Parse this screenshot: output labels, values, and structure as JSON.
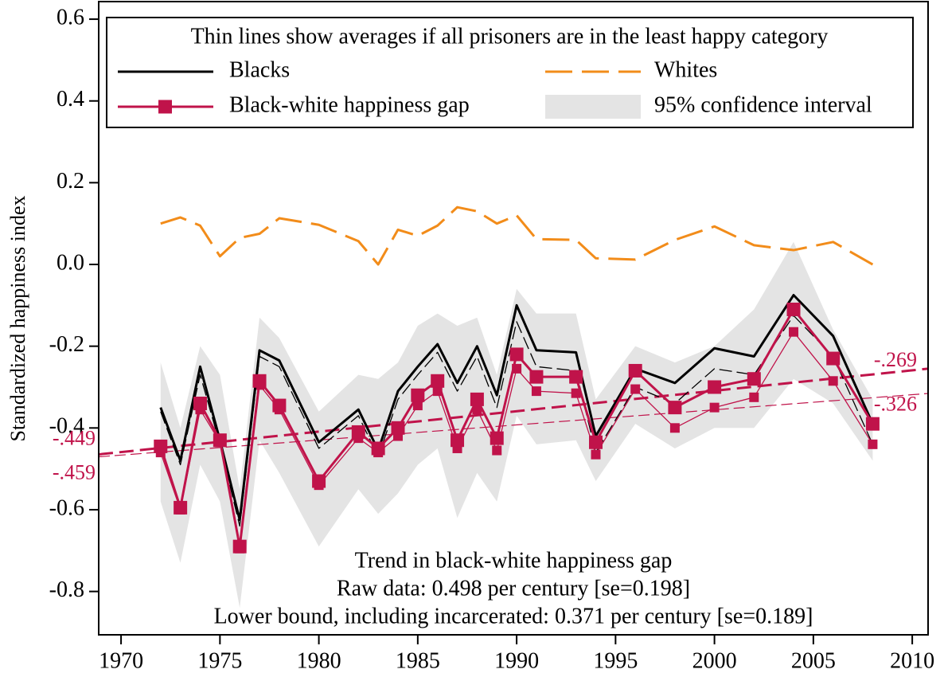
{
  "chart_data": {
    "type": "line",
    "y_label": "Standardized happiness index",
    "x": [
      1972,
      1973,
      1974,
      1975,
      1976,
      1977,
      1978,
      1980,
      1982,
      1983,
      1984,
      1985,
      1986,
      1987,
      1988,
      1989,
      1990,
      1991,
      1993,
      1994,
      1996,
      1998,
      2000,
      2002,
      2004,
      2006,
      2008
    ],
    "series": [
      {
        "name": "Blacks",
        "color": "#000000",
        "width": 3,
        "dash": "none",
        "marker": false,
        "values": [
          -0.35,
          -0.48,
          -0.25,
          -0.43,
          -0.625,
          -0.21,
          -0.235,
          -0.435,
          -0.355,
          -0.455,
          -0.31,
          -0.25,
          -0.195,
          -0.29,
          -0.2,
          -0.32,
          -0.1,
          -0.21,
          -0.215,
          -0.42,
          -0.255,
          -0.29,
          -0.205,
          -0.225,
          -0.075,
          -0.175,
          -0.39
        ]
      },
      {
        "name": "Whites",
        "color": "#f28c1a",
        "width": 3,
        "dash": "34 12",
        "marker": false,
        "values": [
          0.1,
          0.115,
          0.095,
          0.02,
          0.065,
          0.075,
          0.113,
          0.097,
          0.057,
          0.0,
          0.085,
          0.07,
          0.095,
          0.14,
          0.13,
          0.1,
          0.12,
          0.062,
          0.06,
          0.015,
          0.012,
          0.06,
          0.093,
          0.047,
          0.035,
          0.055,
          0.0
        ]
      },
      {
        "name": "Black-white happiness gap",
        "color": "#c0134a",
        "width": 3,
        "dash": "none",
        "marker": true,
        "values": [
          -0.445,
          -0.595,
          -0.34,
          -0.43,
          -0.69,
          -0.285,
          -0.345,
          -0.53,
          -0.41,
          -0.45,
          -0.4,
          -0.32,
          -0.285,
          -0.43,
          -0.33,
          -0.425,
          -0.22,
          -0.275,
          -0.275,
          -0.435,
          -0.26,
          -0.35,
          -0.3,
          -0.28,
          -0.11,
          -0.23,
          -0.39
        ]
      },
      {
        "color": "#000000",
        "width": 1.3,
        "dash": "16 6",
        "marker": false,
        "values": [
          -0.36,
          -0.49,
          -0.27,
          -0.44,
          -0.64,
          -0.225,
          -0.25,
          -0.45,
          -0.37,
          -0.47,
          -0.33,
          -0.27,
          -0.215,
          -0.31,
          -0.225,
          -0.35,
          -0.14,
          -0.25,
          -0.26,
          -0.46,
          -0.3,
          -0.34,
          -0.255,
          -0.27,
          -0.125,
          -0.225,
          -0.44
        ]
      },
      {
        "color": "#c0134a",
        "width": 1.3,
        "dash": "none",
        "marker": true,
        "values": [
          -0.46,
          -0.6,
          -0.355,
          -0.435,
          -0.695,
          -0.295,
          -0.355,
          -0.54,
          -0.425,
          -0.46,
          -0.42,
          -0.345,
          -0.31,
          -0.45,
          -0.355,
          -0.455,
          -0.255,
          -0.31,
          -0.315,
          -0.465,
          -0.305,
          -0.4,
          -0.35,
          -0.325,
          -0.165,
          -0.285,
          -0.44
        ]
      }
    ],
    "ci": {
      "name": "95% confidence interval",
      "color": "#e4e4e4",
      "upper": [
        -0.24,
        -0.4,
        -0.2,
        -0.27,
        -0.55,
        -0.13,
        -0.18,
        -0.36,
        -0.27,
        -0.28,
        -0.24,
        -0.15,
        -0.12,
        -0.15,
        -0.13,
        -0.27,
        -0.06,
        -0.12,
        -0.12,
        -0.33,
        -0.2,
        -0.24,
        -0.2,
        -0.11,
        0.055,
        -0.16,
        -0.33
      ],
      "lower": [
        -0.58,
        -0.73,
        -0.49,
        -0.58,
        -0.84,
        -0.43,
        -0.51,
        -0.69,
        -0.55,
        -0.61,
        -0.56,
        -0.49,
        -0.45,
        -0.62,
        -0.51,
        -0.58,
        -0.37,
        -0.44,
        -0.43,
        -0.53,
        -0.39,
        -0.45,
        -0.4,
        -0.4,
        -0.28,
        -0.34,
        -0.48
      ]
    },
    "trend_lines": [
      {
        "color": "#c0134a",
        "width": 3,
        "dash": "18 8",
        "x": [
          1972,
          2008
        ],
        "values": [
          -0.449,
          -0.269
        ],
        "value_labels": [
          "-.449",
          "-.269"
        ]
      },
      {
        "color": "#c0134a",
        "width": 1.2,
        "dash": "14 6",
        "x": [
          1972,
          2008
        ],
        "values": [
          -0.459,
          -0.326
        ],
        "value_labels": [
          "-.459",
          "-.326"
        ]
      }
    ],
    "legend_title": "Thin lines show averages if all prisoners are in the least happy category",
    "annotations": [
      "Trend in black-white happiness gap",
      "Raw data: 0.498 per century [se=0.198]",
      "Lower bound, including incarcerated: 0.371 per century [se=0.189]"
    ],
    "xlim": [
      1968.87,
      2010.8
    ],
    "ylim": [
      -0.906,
      0.643
    ],
    "xticks": [
      1970,
      1975,
      1980,
      1985,
      1990,
      1995,
      2000,
      2005,
      2010
    ],
    "yticks": [
      0.6,
      0.4,
      0.2,
      {
        "value": 0,
        "label": "0.0"
      },
      -0.2,
      -0.4,
      -0.6,
      -0.8
    ]
  }
}
